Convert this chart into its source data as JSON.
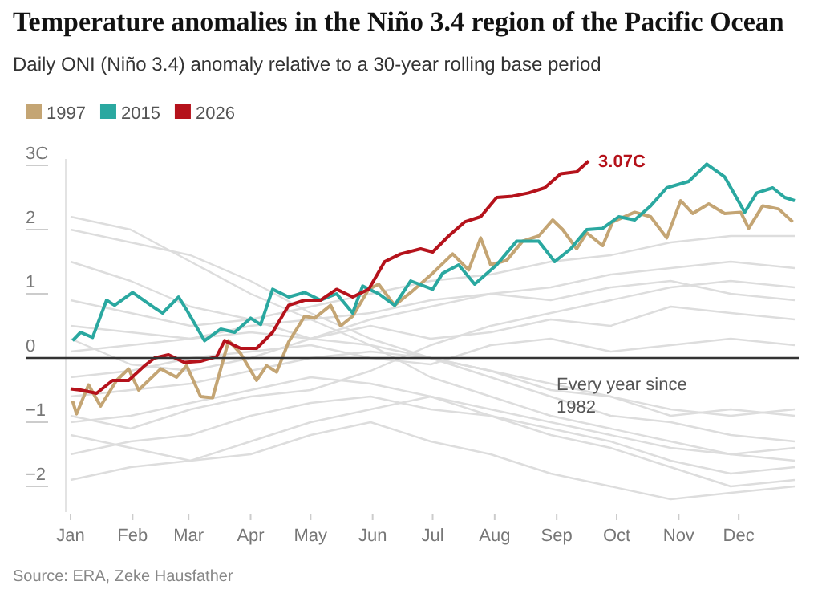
{
  "chart_data": {
    "type": "line",
    "title": "Temperature anomalies in the Niño 3.4 region of the Pacific Ocean",
    "subtitle": "Daily ONI (Niño 3.4) anomaly relative to a 30-year rolling base period",
    "x": [
      "--01-01",
      "--01-31",
      "--03-02",
      "--04-01",
      "--05-01",
      "--05-31",
      "--06-30",
      "--07-30",
      "--08-29",
      "--09-28",
      "--10-28",
      "--11-27",
      "--12-29"
    ],
    "xlim": [
      "--01-01",
      "--12-31"
    ],
    "xticks": [
      {
        "value": "--01-01",
        "label": "Jan"
      },
      {
        "value": "--02-01",
        "label": "Feb"
      },
      {
        "value": "--03-01",
        "label": "Mar"
      },
      {
        "value": "--04-01",
        "label": "Apr"
      },
      {
        "value": "--05-01",
        "label": "May"
      },
      {
        "value": "--06-01",
        "label": "Jun"
      },
      {
        "value": "--07-01",
        "label": "Jul"
      },
      {
        "value": "--08-01",
        "label": "Aug"
      },
      {
        "value": "--09-01",
        "label": "Sep"
      },
      {
        "value": "--10-01",
        "label": "Oct"
      },
      {
        "value": "--11-01",
        "label": "Nov"
      },
      {
        "value": "--12-01",
        "label": "Dec"
      }
    ],
    "ylim": [
      -2.4,
      3.1
    ],
    "yticks": [
      {
        "value": 3,
        "label": "3C"
      },
      2,
      1,
      0,
      {
        "value": -1,
        "label": "−1"
      },
      {
        "value": -2,
        "label": "−2"
      }
    ],
    "legend": "top left",
    "ref_lines": [
      {
        "axis": "y",
        "value": 0,
        "color": "#333333"
      }
    ],
    "series": [
      {
        "color": "#dddddd",
        "values": [
          2.2,
          2.0,
          1.5,
          1.0,
          0.6,
          0.2,
          -0.3,
          -0.6,
          -0.9,
          -1.1,
          -1.3,
          -1.5,
          -1.6
        ]
      },
      {
        "color": "#dddddd",
        "values": [
          2.0,
          1.8,
          1.6,
          1.2,
          0.7,
          0.3,
          0.0,
          -0.3,
          -0.6,
          -0.9,
          -1.0,
          -1.2,
          -1.3
        ]
      },
      {
        "color": "#dddddd",
        "values": [
          1.5,
          1.2,
          0.8,
          0.6,
          0.3,
          0.2,
          0.0,
          -0.2,
          -0.5,
          -0.6,
          -0.9,
          -0.8,
          -0.9
        ]
      },
      {
        "color": "#dddddd",
        "values": [
          0.9,
          0.7,
          0.5,
          0.6,
          0.8,
          1.0,
          1.2,
          1.3,
          1.5,
          1.6,
          1.8,
          1.9,
          1.9
        ]
      },
      {
        "color": "#dddddd",
        "values": [
          0.5,
          0.4,
          0.3,
          0.5,
          0.6,
          0.7,
          0.9,
          1.0,
          1.1,
          1.3,
          1.4,
          1.5,
          1.4
        ]
      },
      {
        "color": "#dddddd",
        "values": [
          0.1,
          0.2,
          0.3,
          0.4,
          0.3,
          0.5,
          0.3,
          0.4,
          0.6,
          0.5,
          0.8,
          0.7,
          0.6
        ]
      },
      {
        "color": "#dddddd",
        "values": [
          -0.3,
          -0.2,
          0.0,
          0.1,
          0.2,
          0.0,
          -0.1,
          0.2,
          0.3,
          0.1,
          0.2,
          0.3,
          0.2
        ]
      },
      {
        "color": "#dddddd",
        "values": [
          -0.6,
          -0.5,
          -0.4,
          -0.2,
          0.0,
          0.1,
          0.0,
          -0.2,
          -0.4,
          -0.6,
          -0.8,
          -0.9,
          -0.8
        ]
      },
      {
        "color": "#dddddd",
        "values": [
          -1.0,
          -0.9,
          -0.7,
          -0.5,
          -0.3,
          -0.4,
          -0.6,
          -0.8,
          -1.0,
          -1.2,
          -1.4,
          -1.5,
          -1.4
        ]
      },
      {
        "color": "#dddddd",
        "values": [
          -1.5,
          -1.3,
          -1.2,
          -0.9,
          -0.7,
          -0.6,
          -0.8,
          -0.9,
          -1.1,
          -1.3,
          -1.6,
          -1.8,
          -1.7
        ]
      },
      {
        "color": "#dddddd",
        "values": [
          -1.9,
          -1.7,
          -1.6,
          -1.3,
          -1.0,
          -0.8,
          -0.6,
          -0.9,
          -1.2,
          -1.4,
          -1.7,
          -2.0,
          -1.9
        ]
      },
      {
        "color": "#dddddd",
        "values": [
          -0.9,
          -1.1,
          -0.8,
          -0.6,
          -0.5,
          -0.2,
          0.2,
          0.5,
          0.7,
          0.9,
          1.1,
          1.2,
          1.1
        ]
      },
      {
        "color": "#dddddd",
        "values": [
          0.3,
          -0.1,
          -0.2,
          0.0,
          0.3,
          0.6,
          0.8,
          1.0,
          0.9,
          1.1,
          1.2,
          1.0,
          0.9
        ]
      },
      {
        "color": "#dddddd",
        "values": [
          -1.2,
          -1.4,
          -1.6,
          -1.5,
          -1.2,
          -1.0,
          -1.3,
          -1.5,
          -1.8,
          -2.0,
          -2.2,
          -2.1,
          -2.0
        ]
      },
      {
        "name": "1997",
        "color": "#c4a574",
        "x": [
          "--01-02",
          "--01-04",
          "--01-10",
          "--01-16",
          "--01-24",
          "--01-30",
          "--02-04",
          "--02-15",
          "--02-23",
          "--02-28",
          "--03-07",
          "--03-13",
          "--03-21",
          "--03-27",
          "--04-04",
          "--04-09",
          "--04-14",
          "--04-20",
          "--04-28",
          "--05-03",
          "--05-11",
          "--05-16",
          "--05-22",
          "--05-30",
          "--06-04",
          "--06-12",
          "--06-20",
          "--07-01",
          "--07-11",
          "--07-19",
          "--07-25",
          "--07-30",
          "--08-07",
          "--08-15",
          "--08-23",
          "--08-30",
          "--09-04",
          "--09-11",
          "--09-16",
          "--09-24",
          "--09-29",
          "--10-10",
          "--10-18",
          "--10-26",
          "--11-02",
          "--11-08",
          "--11-16",
          "--11-24",
          "--12-02",
          "--12-06",
          "--12-13",
          "--12-21",
          "--12-28"
        ],
        "values": [
          -0.67,
          -0.87,
          -0.42,
          -0.75,
          -0.35,
          -0.17,
          -0.5,
          -0.17,
          -0.3,
          -0.12,
          -0.6,
          -0.62,
          0.27,
          0.07,
          -0.35,
          -0.12,
          -0.22,
          0.25,
          0.65,
          0.62,
          0.82,
          0.5,
          0.65,
          1.07,
          1.15,
          0.82,
          1.02,
          1.32,
          1.62,
          1.37,
          1.87,
          1.45,
          1.52,
          1.82,
          1.9,
          2.15,
          2.0,
          1.7,
          1.95,
          1.75,
          2.12,
          2.27,
          2.2,
          1.87,
          2.45,
          2.25,
          2.4,
          2.25,
          2.27,
          2.02,
          2.37,
          2.32,
          2.12
        ]
      },
      {
        "name": "2015",
        "color": "#2aa8a0",
        "x": [
          "--01-02",
          "--01-06",
          "--01-12",
          "--01-19",
          "--01-23",
          "--02-01",
          "--02-12",
          "--02-16",
          "--02-24",
          "--02-28",
          "--03-09",
          "--03-17",
          "--03-24",
          "--04-01",
          "--04-06",
          "--04-12",
          "--04-20",
          "--04-28",
          "--05-06",
          "--05-14",
          "--05-22",
          "--05-27",
          "--06-04",
          "--06-12",
          "--06-20",
          "--07-01",
          "--07-06",
          "--07-14",
          "--07-22",
          "--08-02",
          "--08-12",
          "--08-23",
          "--08-31",
          "--09-08",
          "--09-16",
          "--09-24",
          "--10-02",
          "--10-10",
          "--10-18",
          "--10-26",
          "--11-06",
          "--11-15",
          "--11-24",
          "--12-04",
          "--12-10",
          "--12-18",
          "--12-24",
          "--12-29"
        ],
        "values": [
          0.27,
          0.4,
          0.32,
          0.9,
          0.82,
          1.02,
          0.78,
          0.7,
          0.95,
          0.75,
          0.27,
          0.45,
          0.4,
          0.62,
          0.52,
          1.07,
          0.95,
          1.02,
          0.9,
          1.0,
          0.7,
          1.12,
          1.0,
          0.82,
          1.2,
          1.07,
          1.32,
          1.45,
          1.15,
          1.45,
          1.82,
          1.82,
          1.5,
          1.7,
          2.0,
          2.02,
          2.2,
          2.15,
          2.37,
          2.65,
          2.75,
          3.02,
          2.82,
          2.27,
          2.57,
          2.65,
          2.5,
          2.45
        ]
      },
      {
        "name": "2026",
        "color": "#b5121b",
        "x": [
          "--01-01",
          "--01-06",
          "--01-14",
          "--01-22",
          "--01-30",
          "--02-07",
          "--02-12",
          "--02-19",
          "--02-27",
          "--03-07",
          "--03-15",
          "--03-19",
          "--03-27",
          "--04-04",
          "--04-12",
          "--04-20",
          "--04-28",
          "--05-06",
          "--05-14",
          "--05-22",
          "--05-30",
          "--06-07",
          "--06-15",
          "--06-25",
          "--07-01",
          "--07-09",
          "--07-17",
          "--07-25",
          "--08-02",
          "--08-10",
          "--08-18",
          "--08-26",
          "--09-03",
          "--09-11",
          "--09-17"
        ],
        "values": [
          -0.48,
          -0.5,
          -0.55,
          -0.35,
          -0.35,
          -0.12,
          0,
          0.05,
          -0.07,
          -0.05,
          0.02,
          0.27,
          0.15,
          0.15,
          0.4,
          0.82,
          0.9,
          0.9,
          1.07,
          0.95,
          1.07,
          1.5,
          1.62,
          1.7,
          1.65,
          1.9,
          2.12,
          2.2,
          2.5,
          2.52,
          2.57,
          2.65,
          2.87,
          2.9,
          3.07
        ]
      }
    ],
    "annotations": [
      {
        "text": "3.07C",
        "x": "--09-17",
        "y": 3.07
      },
      "Every year since 1982",
      "Source: ERA, Zeke Hausfather"
    ]
  }
}
